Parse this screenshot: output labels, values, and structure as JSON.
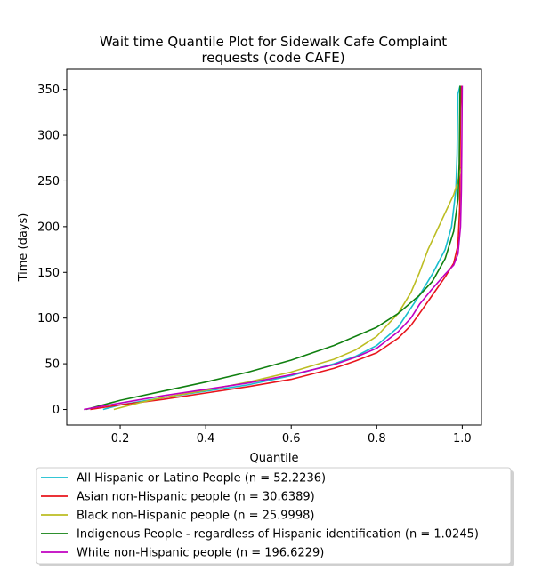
{
  "chart_data": {
    "type": "line",
    "title_lines": [
      "Wait time Quantile Plot for Sidewalk Cafe Complaint",
      "requests (code CAFE)"
    ],
    "xlabel": "Quantile",
    "ylabel": "Time (days)",
    "xlim": [
      0.075,
      1.045
    ],
    "ylim": [
      -17,
      372
    ],
    "xticks": [
      0.2,
      0.4,
      0.6,
      0.8,
      1.0
    ],
    "xtick_labels": [
      "0.2",
      "0.4",
      "0.6",
      "0.8",
      "1.0"
    ],
    "yticks": [
      0,
      50,
      100,
      150,
      200,
      250,
      300,
      350
    ],
    "ytick_labels": [
      "0",
      "50",
      "100",
      "150",
      "200",
      "250",
      "300",
      "350"
    ],
    "grid": false,
    "legend_position": "below",
    "series": [
      {
        "name": "All Hispanic or Latino People (n = 52.2236)",
        "color": "#17becf",
        "points": [
          [
            0.16,
            0
          ],
          [
            0.2,
            5
          ],
          [
            0.3,
            13
          ],
          [
            0.4,
            20
          ],
          [
            0.5,
            27
          ],
          [
            0.6,
            37
          ],
          [
            0.7,
            50
          ],
          [
            0.75,
            58
          ],
          [
            0.8,
            70
          ],
          [
            0.85,
            90
          ],
          [
            0.9,
            125
          ],
          [
            0.93,
            148
          ],
          [
            0.96,
            175
          ],
          [
            0.975,
            200
          ],
          [
            0.985,
            240
          ],
          [
            0.988,
            280
          ],
          [
            0.989,
            320
          ],
          [
            0.99,
            345
          ],
          [
            0.995,
            354
          ]
        ]
      },
      {
        "name": "Asian non-Hispanic people (n = 30.6389)",
        "color": "#e8141c",
        "points": [
          [
            0.13,
            0
          ],
          [
            0.2,
            5
          ],
          [
            0.3,
            11
          ],
          [
            0.4,
            18
          ],
          [
            0.5,
            25
          ],
          [
            0.6,
            33
          ],
          [
            0.7,
            45
          ],
          [
            0.75,
            53
          ],
          [
            0.8,
            62
          ],
          [
            0.85,
            78
          ],
          [
            0.88,
            92
          ],
          [
            0.9,
            105
          ],
          [
            0.93,
            125
          ],
          [
            0.96,
            145
          ],
          [
            0.98,
            160
          ],
          [
            0.99,
            180
          ],
          [
            0.994,
            220
          ],
          [
            0.995,
            280
          ],
          [
            0.996,
            330
          ],
          [
            0.998,
            354
          ]
        ]
      },
      {
        "name": "Black non-Hispanic people (n = 25.9998)",
        "color": "#bcbd22",
        "points": [
          [
            0.185,
            0
          ],
          [
            0.25,
            8
          ],
          [
            0.3,
            13
          ],
          [
            0.4,
            21
          ],
          [
            0.5,
            30
          ],
          [
            0.6,
            41
          ],
          [
            0.7,
            55
          ],
          [
            0.75,
            65
          ],
          [
            0.8,
            80
          ],
          [
            0.85,
            105
          ],
          [
            0.88,
            128
          ],
          [
            0.9,
            150
          ],
          [
            0.92,
            175
          ],
          [
            0.95,
            205
          ],
          [
            0.98,
            235
          ],
          [
            0.99,
            250
          ],
          [
            0.995,
            260
          ],
          [
            0.998,
            265
          ]
        ]
      },
      {
        "name": "Indigenous People - regardless of Hispanic identification (n = 1.0245)",
        "color": "#108010",
        "points": [
          [
            0.12,
            0
          ],
          [
            0.2,
            10
          ],
          [
            0.3,
            20
          ],
          [
            0.4,
            30
          ],
          [
            0.5,
            41
          ],
          [
            0.6,
            54
          ],
          [
            0.7,
            70
          ],
          [
            0.8,
            90
          ],
          [
            0.85,
            105
          ],
          [
            0.9,
            125
          ],
          [
            0.93,
            140
          ],
          [
            0.96,
            165
          ],
          [
            0.98,
            195
          ],
          [
            0.99,
            230
          ],
          [
            0.993,
            270
          ],
          [
            0.994,
            320
          ],
          [
            0.995,
            354
          ]
        ]
      },
      {
        "name": "White non-Hispanic people (n = 196.6229)",
        "color": "#c000c0",
        "points": [
          [
            0.115,
            0
          ],
          [
            0.2,
            7
          ],
          [
            0.3,
            15
          ],
          [
            0.4,
            22
          ],
          [
            0.5,
            29
          ],
          [
            0.6,
            38
          ],
          [
            0.7,
            49
          ],
          [
            0.75,
            57
          ],
          [
            0.8,
            67
          ],
          [
            0.85,
            85
          ],
          [
            0.88,
            100
          ],
          [
            0.9,
            115
          ],
          [
            0.93,
            132
          ],
          [
            0.96,
            148
          ],
          [
            0.98,
            158
          ],
          [
            0.99,
            170
          ],
          [
            0.996,
            200
          ],
          [
            0.998,
            240
          ],
          [
            0.999,
            290
          ],
          [
            1.0,
            354
          ]
        ]
      }
    ]
  }
}
